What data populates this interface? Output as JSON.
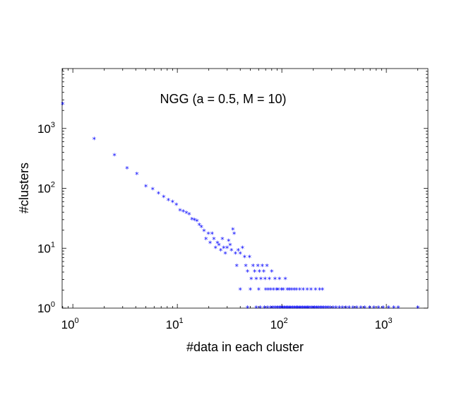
{
  "chart_data": {
    "type": "scatter",
    "title": "",
    "annotation": "NGG (a = 0.5, M = 10)",
    "xlabel": "#data in each cluster",
    "ylabel": "#clusters",
    "xscale": "log",
    "yscale": "log",
    "xlim": [
      0.79,
      2500
    ],
    "ylim": [
      1,
      10000
    ],
    "grid": false,
    "marker": "*",
    "colors": {
      "marker": "#0000ff",
      "axes": "#000000"
    },
    "x_ticks": [
      {
        "base": "10",
        "exp": "0"
      },
      {
        "base": "10",
        "exp": "1"
      },
      {
        "base": "10",
        "exp": "2"
      },
      {
        "base": "10",
        "exp": "3"
      }
    ],
    "y_ticks": [
      {
        "base": "10",
        "exp": "0"
      },
      {
        "base": "10",
        "exp": "1"
      },
      {
        "base": "10",
        "exp": "2"
      },
      {
        "base": "10",
        "exp": "3"
      }
    ],
    "points": [
      [
        0.8,
        2500
      ],
      [
        1.6,
        650
      ],
      [
        2.5,
        350
      ],
      [
        3.3,
        210
      ],
      [
        4.1,
        170
      ],
      [
        5,
        105
      ],
      [
        5.8,
        95
      ],
      [
        6.6,
        80
      ],
      [
        7.4,
        70
      ],
      [
        8.2,
        62
      ],
      [
        9,
        58
      ],
      [
        9.8,
        52
      ],
      [
        10.6,
        42
      ],
      [
        11.4,
        40
      ],
      [
        12.2,
        38
      ],
      [
        13,
        36
      ],
      [
        13.8,
        30
      ],
      [
        14.6,
        29
      ],
      [
        15.4,
        28
      ],
      [
        16.2,
        24
      ],
      [
        17,
        22
      ],
      [
        18,
        19
      ],
      [
        18.8,
        14
      ],
      [
        19.8,
        17
      ],
      [
        20.6,
        12
      ],
      [
        21.5,
        17
      ],
      [
        22.4,
        14
      ],
      [
        23.2,
        10
      ],
      [
        24.2,
        12
      ],
      [
        25,
        11
      ],
      [
        26,
        9
      ],
      [
        27,
        14
      ],
      [
        27.8,
        10
      ],
      [
        28.8,
        8
      ],
      [
        30,
        10
      ],
      [
        31,
        13
      ],
      [
        32,
        11
      ],
      [
        33,
        9
      ],
      [
        34,
        20
      ],
      [
        35,
        17
      ],
      [
        36,
        8
      ],
      [
        37,
        5
      ],
      [
        38.2,
        9
      ],
      [
        40,
        8
      ],
      [
        42,
        10
      ],
      [
        44,
        7
      ],
      [
        45.2,
        5
      ],
      [
        47,
        4
      ],
      [
        49,
        7
      ],
      [
        51,
        3
      ],
      [
        53,
        5
      ],
      [
        55,
        4
      ],
      [
        57,
        3
      ],
      [
        59,
        5
      ],
      [
        61,
        4
      ],
      [
        63,
        3
      ],
      [
        65,
        5
      ],
      [
        67,
        4
      ],
      [
        69,
        3
      ],
      [
        72,
        5
      ],
      [
        74,
        2
      ],
      [
        76,
        3
      ],
      [
        78,
        2
      ],
      [
        80,
        4
      ],
      [
        83,
        2
      ],
      [
        86,
        3
      ],
      [
        89,
        2
      ],
      [
        92,
        2
      ],
      [
        95,
        3
      ],
      [
        99,
        2
      ],
      [
        103,
        2
      ],
      [
        108,
        3
      ],
      [
        113,
        2
      ],
      [
        118,
        2
      ],
      [
        124,
        2
      ],
      [
        131,
        2
      ],
      [
        138,
        2
      ],
      [
        148,
        2
      ],
      [
        160,
        2
      ],
      [
        175,
        2
      ],
      [
        190,
        2
      ],
      [
        210,
        2
      ],
      [
        230,
        2
      ],
      [
        245,
        2
      ],
      [
        40,
        2
      ],
      [
        50,
        2
      ],
      [
        60,
        2
      ],
      [
        70,
        2
      ],
      [
        47,
        1
      ],
      [
        57,
        1
      ],
      [
        62,
        1
      ],
      [
        68,
        1
      ],
      [
        73,
        1
      ],
      [
        78,
        1
      ],
      [
        82,
        1
      ],
      [
        86,
        1
      ],
      [
        90,
        1
      ],
      [
        94,
        1
      ],
      [
        98,
        1
      ],
      [
        102,
        1
      ],
      [
        106,
        1
      ],
      [
        110,
        1
      ],
      [
        114,
        1
      ],
      [
        118,
        1
      ],
      [
        122,
        1
      ],
      [
        127,
        1
      ],
      [
        132,
        1
      ],
      [
        137,
        1
      ],
      [
        142,
        1
      ],
      [
        147,
        1
      ],
      [
        152,
        1
      ],
      [
        158,
        1
      ],
      [
        164,
        1
      ],
      [
        170,
        1
      ],
      [
        176,
        1
      ],
      [
        182,
        1
      ],
      [
        190,
        1
      ],
      [
        198,
        1
      ],
      [
        206,
        1
      ],
      [
        214,
        1
      ],
      [
        222,
        1
      ],
      [
        232,
        1
      ],
      [
        242,
        1
      ],
      [
        252,
        1
      ],
      [
        264,
        1
      ],
      [
        276,
        1
      ],
      [
        290,
        1
      ],
      [
        310,
        1
      ],
      [
        330,
        1
      ],
      [
        355,
        1
      ],
      [
        380,
        1
      ],
      [
        410,
        1
      ],
      [
        440,
        1
      ],
      [
        480,
        1
      ],
      [
        520,
        1
      ],
      [
        570,
        1
      ],
      [
        620,
        1
      ],
      [
        690,
        1
      ],
      [
        760,
        1
      ],
      [
        840,
        1
      ],
      [
        930,
        1
      ],
      [
        1050,
        1
      ],
      [
        1180,
        1
      ],
      [
        1300,
        1
      ],
      [
        2000,
        1
      ]
    ]
  }
}
